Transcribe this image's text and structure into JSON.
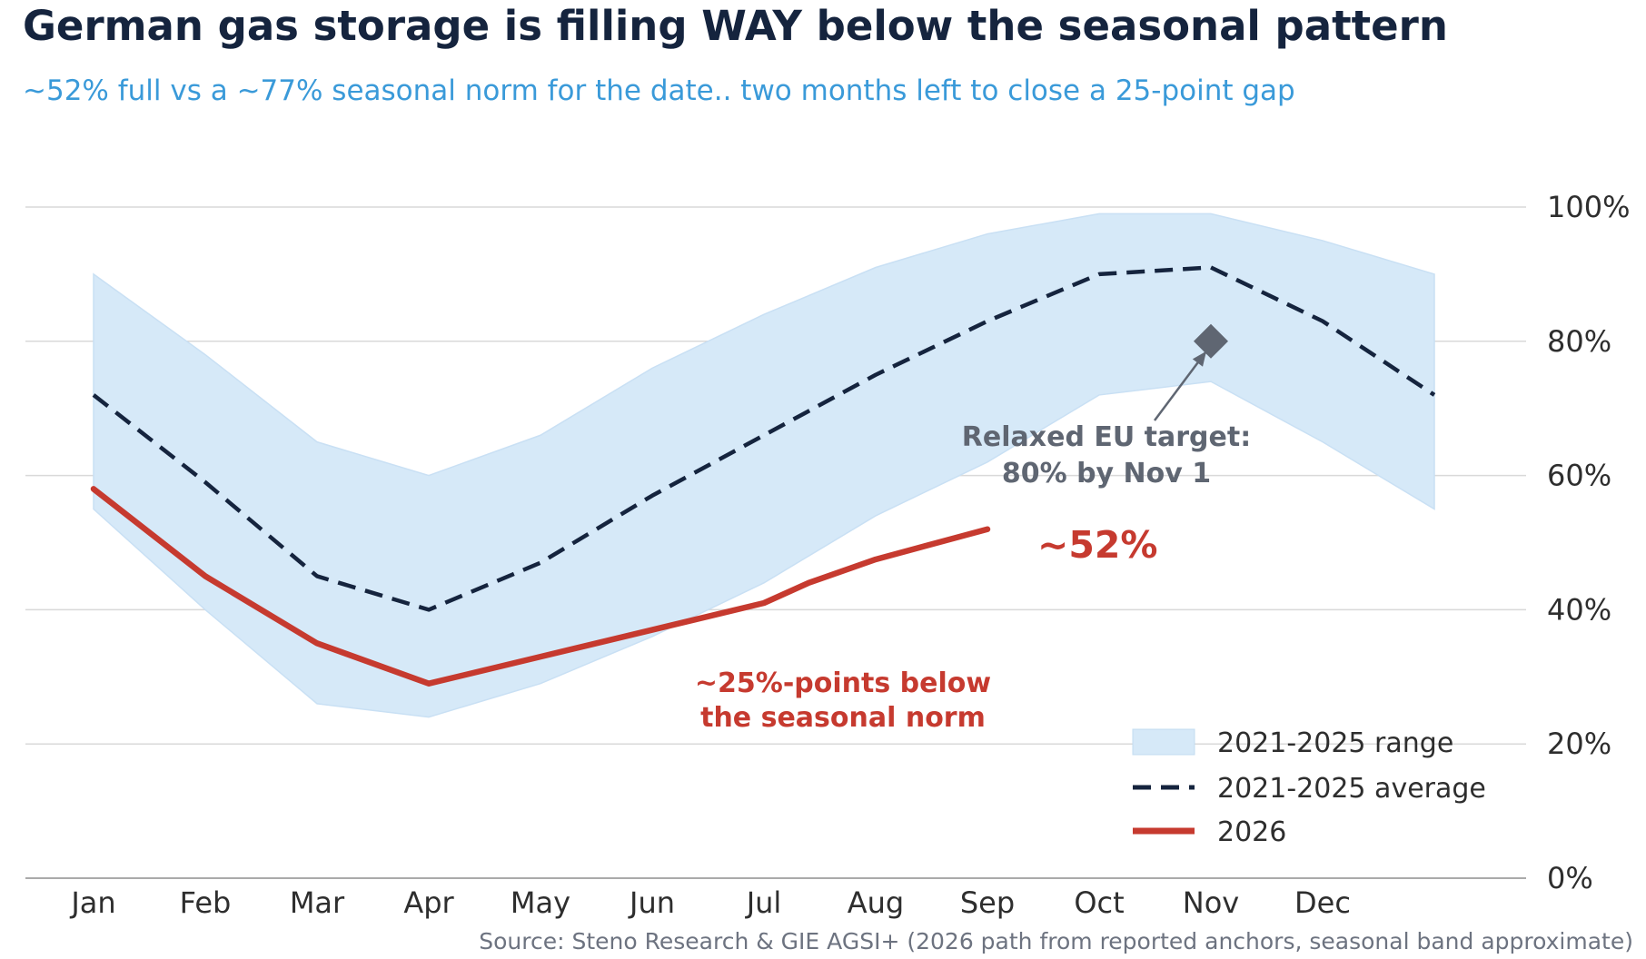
{
  "header": {
    "title": "German gas storage is filling WAY below the seasonal pattern",
    "subtitle": "~52% full vs a ~77% seasonal norm for the date.. two months left to close a 25-point gap"
  },
  "source": "Source: Steno Research & GIE AGSI+ (2026 path from reported anchors, seasonal band approximate)",
  "colors": {
    "band": "#d6e9f8",
    "average": "#15243e",
    "current": "#c63a2f",
    "grid": "#d9d9d9",
    "target_marker": "#5f6672",
    "subtitle": "#3a9ad9"
  },
  "chart_data": {
    "type": "line",
    "x": [
      "Jan",
      "Feb",
      "Mar",
      "Apr",
      "May",
      "Jun",
      "Jul",
      "Aug",
      "Sep",
      "Oct",
      "Nov",
      "Dec"
    ],
    "y_ticks": [
      "0%",
      "20%",
      "40%",
      "60%",
      "80%",
      "100%"
    ],
    "ylim": [
      0,
      100
    ],
    "y_axis_position": "right",
    "grid": "horizontal",
    "series": [
      {
        "name": "2021-2025 range",
        "kind": "band",
        "x": [
          1,
          2,
          3,
          4,
          5,
          6,
          7,
          8,
          9,
          10,
          11,
          12,
          13
        ],
        "low": [
          55,
          40,
          26,
          24,
          29,
          36,
          44,
          54,
          62,
          72,
          74,
          65,
          55
        ],
        "high": [
          90,
          78,
          65,
          60,
          66,
          76,
          84,
          91,
          96,
          99,
          99,
          95,
          90
        ]
      },
      {
        "name": "2021-2025 average",
        "kind": "dashed-line",
        "x": [
          1,
          2,
          3,
          4,
          5,
          6,
          7,
          8,
          9,
          10,
          11,
          12,
          13
        ],
        "values": [
          72,
          59,
          45,
          40,
          47,
          57,
          66,
          75,
          83,
          90,
          91,
          83,
          72
        ]
      },
      {
        "name": "2026",
        "kind": "solid-line",
        "x": [
          1,
          2,
          3,
          4,
          5,
          6,
          7,
          7.4,
          8,
          9
        ],
        "values": [
          58,
          45,
          35,
          29,
          33,
          37,
          41,
          44,
          47.5,
          52
        ]
      }
    ],
    "target_point": {
      "x": 11,
      "y": 80
    },
    "annotations": {
      "target_line1": "Relaxed EU target:",
      "target_line2": "80% by Nov 1",
      "current_value": "~52%",
      "gap_line1": "~25%-points below",
      "gap_line2": "the seasonal norm"
    },
    "legend": {
      "placement": "bottom-right",
      "items": [
        "2021-2025 range",
        "2021-2025 average",
        "2026"
      ]
    }
  }
}
